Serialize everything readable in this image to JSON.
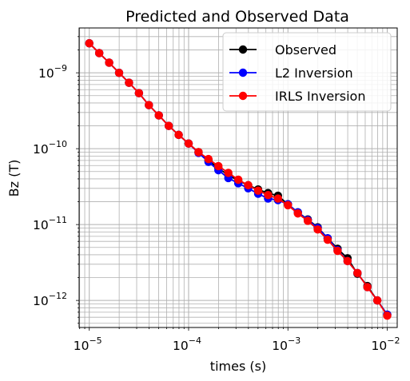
{
  "chart_data": {
    "type": "line",
    "title": "Predicted and Observed Data",
    "xlabel": "times (s)",
    "ylabel": "Bz (T)",
    "xscale": "log",
    "yscale": "log",
    "xlim": [
      7.9e-06,
      0.0126
    ],
    "ylim": [
      4.4e-13,
      3.9e-09
    ],
    "grid": "major and minor",
    "legend_position": "top-right",
    "x_ticks": [
      {
        "base": "10",
        "exp": "−5",
        "value": 1e-05
      },
      {
        "base": "10",
        "exp": "−4",
        "value": 0.0001
      },
      {
        "base": "10",
        "exp": "−3",
        "value": 0.001
      },
      {
        "base": "10",
        "exp": "−2",
        "value": 0.01
      }
    ],
    "y_ticks": [
      {
        "base": "10",
        "exp": "−9",
        "value": 1e-09
      },
      {
        "base": "10",
        "exp": "−10",
        "value": 1e-10
      },
      {
        "base": "10",
        "exp": "−11",
        "value": 1e-11
      },
      {
        "base": "10",
        "exp": "−12",
        "value": 1e-12
      }
    ],
    "x": [
      1e-05,
      1.259e-05,
      1.585e-05,
      1.995e-05,
      2.512e-05,
      3.162e-05,
      3.981e-05,
      5.012e-05,
      6.31e-05,
      7.943e-05,
      0.0001,
      0.0001259,
      0.0001585,
      0.0001995,
      0.0002512,
      0.0003162,
      0.0003981,
      0.0005012,
      0.000631,
      0.0007943,
      0.001,
      0.001259,
      0.001585,
      0.001995,
      0.002512,
      0.003162,
      0.003981,
      0.005012,
      0.00631,
      0.007943,
      0.01
    ],
    "series": [
      {
        "name": "Observed",
        "color": "#000000",
        "values": [
          2.45e-09,
          1.82e-09,
          1.36e-09,
          1e-09,
          7.4e-10,
          5.4e-10,
          3.75e-10,
          2.75e-10,
          2e-10,
          1.52e-10,
          1.17e-10,
          9e-11,
          7e-11,
          5.5e-11,
          4.5e-11,
          3.8e-11,
          3.3e-11,
          2.9e-11,
          2.6e-11,
          2.4e-11,
          1.85e-11,
          1.45e-11,
          1.17e-11,
          9.2e-12,
          6.6e-12,
          4.8e-12,
          3.6e-12,
          2.25e-12,
          1.55e-12,
          1e-12,
          6.5e-13
        ]
      },
      {
        "name": "L2 Inversion",
        "color": "#0000ff",
        "values": [
          2.45e-09,
          1.82e-09,
          1.36e-09,
          1e-09,
          7.4e-10,
          5.4e-10,
          3.75e-10,
          2.75e-10,
          2e-10,
          1.52e-10,
          1.17e-10,
          8.8e-11,
          6.7e-11,
          5.2e-11,
          4.1e-11,
          3.5e-11,
          3e-11,
          2.55e-11,
          2.2e-11,
          2.1e-11,
          1.85e-11,
          1.45e-11,
          1.15e-11,
          9e-12,
          6.6e-12,
          4.6e-12,
          3.3e-12,
          2.3e-12,
          1.5e-12,
          1e-12,
          6.5e-13
        ]
      },
      {
        "name": "IRLS Inversion",
        "color": "#ff0000",
        "values": [
          2.45e-09,
          1.82e-09,
          1.36e-09,
          1e-09,
          7.4e-10,
          5.4e-10,
          3.75e-10,
          2.75e-10,
          2e-10,
          1.52e-10,
          1.17e-10,
          9e-11,
          7.3e-11,
          5.9e-11,
          4.8e-11,
          3.9e-11,
          3.3e-11,
          2.8e-11,
          2.45e-11,
          2.2e-11,
          1.8e-11,
          1.4e-11,
          1.12e-11,
          8.6e-12,
          6.3e-12,
          4.5e-12,
          3.3e-12,
          2.3e-12,
          1.5e-12,
          1e-12,
          6.3e-13
        ]
      }
    ]
  }
}
